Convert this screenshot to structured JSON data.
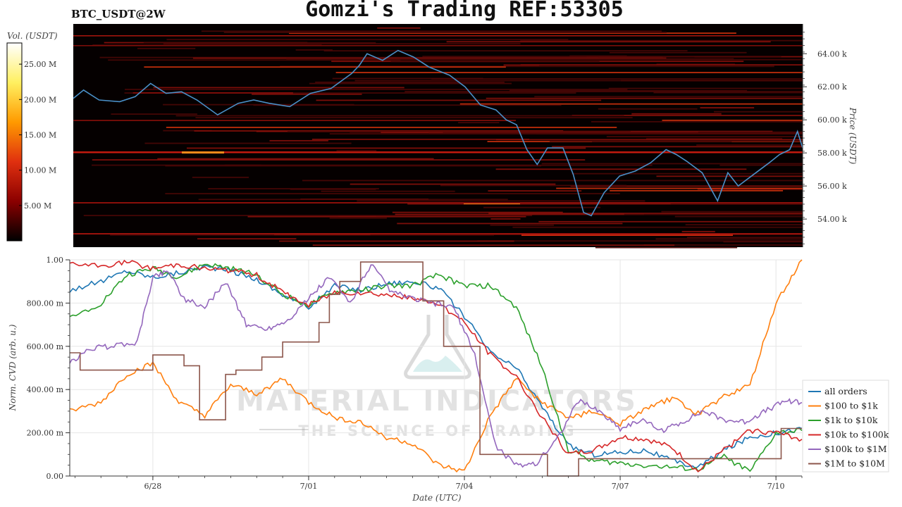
{
  "header": {
    "title": "Gomzi's Trading REF:53305",
    "symbol": "BTC_USDT@2W"
  },
  "watermark": {
    "line1": "MATERIAL INDICATORS",
    "line2": "THE SCIENCE OF TRADING"
  },
  "colorbar": {
    "label": "Vol. (USDT)",
    "ticks": [
      "5.00 M",
      "10.00 M",
      "15.00 M",
      "20.00 M",
      "25.00 M"
    ],
    "tick_values": [
      5,
      10,
      15,
      20,
      25
    ],
    "range": [
      0,
      28
    ],
    "colors": [
      "#000000",
      "#8b0000",
      "#e0300f",
      "#ff9a00",
      "#fff060",
      "#ffffff"
    ]
  },
  "chart_data": [
    {
      "type": "heatmap",
      "ylabel": "Price (USDT)",
      "yticks": [
        "54.00 k",
        "56.00 k",
        "58.00 k",
        "60.00 k",
        "62.00 k",
        "64.00 k"
      ],
      "ytick_values": [
        54000,
        56000,
        58000,
        60000,
        62000,
        64000
      ],
      "ylim": [
        52300,
        65800
      ],
      "xlim_days": [
        -2.6,
        11.55
      ],
      "colors": {
        "background": "#050000",
        "price_line": "#4a90c8"
      },
      "price_series": {
        "x": [
          -2.6,
          -2.4,
          -2.1,
          -1.7,
          -1.4,
          -1.1,
          -0.8,
          -0.5,
          -0.2,
          0.2,
          0.6,
          0.9,
          1.2,
          1.6,
          2.0,
          2.4,
          2.8,
          2.95,
          3.1,
          3.4,
          3.7,
          4.0,
          4.3,
          4.7,
          5.0,
          5.3,
          5.6,
          5.8,
          6.0,
          6.2,
          6.4,
          6.6,
          6.9,
          7.1,
          7.3,
          7.45,
          7.7,
          8.0,
          8.3,
          8.6,
          8.9,
          9.1,
          9.3,
          9.6,
          9.9,
          10.1,
          10.3,
          10.6,
          10.9,
          11.1,
          11.3,
          11.45,
          11.55
        ],
        "y": [
          61300,
          61800,
          61200,
          61100,
          61400,
          62200,
          61600,
          61700,
          61200,
          60300,
          61000,
          61200,
          61000,
          60800,
          61600,
          61900,
          62800,
          63300,
          64000,
          63600,
          64200,
          63800,
          63200,
          62700,
          62000,
          60900,
          60600,
          60000,
          59700,
          58200,
          57300,
          58300,
          58300,
          56700,
          54400,
          54200,
          55600,
          56600,
          56900,
          57400,
          58200,
          57900,
          57500,
          56800,
          55100,
          56800,
          56000,
          56700,
          57400,
          57900,
          58200,
          59300,
          58300
        ]
      }
    },
    {
      "type": "line",
      "xlabel": "Date (UTC)",
      "ylabel": "Norm. CVD (arb. u.)",
      "x_tick_labels": [
        "6/28",
        "7/01",
        "7/04",
        "7/07",
        "7/10"
      ],
      "x_tick_days": [
        0,
        3,
        6,
        9,
        12
      ],
      "xlim_days": [
        -1.6,
        12.5
      ],
      "y_tick_labels": [
        "0.00",
        "200.00 m",
        "400.00 m",
        "600.00 m",
        "800.00 m",
        "1.00"
      ],
      "y_tick_values": [
        0,
        0.2,
        0.4,
        0.6,
        0.8,
        1.0
      ],
      "ylim": [
        0,
        1
      ],
      "grid": true,
      "legend_position": "bottom-right",
      "series": [
        {
          "name": "all orders",
          "color": "#1f77b4",
          "x": [
            -1.6,
            -1,
            -0.5,
            0,
            0.5,
            1,
            1.5,
            2,
            2.5,
            3,
            3.5,
            4,
            4.5,
            5,
            5.5,
            6,
            6.5,
            7,
            7.5,
            8,
            8.5,
            9,
            9.5,
            10,
            10.5,
            11,
            11.5,
            12,
            12.5
          ],
          "y": [
            0.86,
            0.9,
            0.95,
            0.92,
            0.94,
            0.97,
            0.95,
            0.91,
            0.84,
            0.78,
            0.88,
            0.86,
            0.89,
            0.9,
            0.87,
            0.74,
            0.57,
            0.5,
            0.32,
            0.14,
            0.1,
            0.11,
            0.12,
            0.07,
            0.04,
            0.12,
            0.18,
            0.2,
            0.22
          ]
        },
        {
          "name": "$100 to $1k",
          "color": "#ff7f0e",
          "x": [
            -1.6,
            -1,
            -0.5,
            0,
            0.5,
            1,
            1.5,
            2,
            2.5,
            3,
            3.5,
            4,
            4.5,
            5,
            5.5,
            6,
            6.5,
            7,
            7.5,
            8,
            8.5,
            9,
            9.5,
            10,
            10.5,
            11,
            11.5,
            12,
            12.5
          ],
          "y": [
            0.3,
            0.34,
            0.47,
            0.52,
            0.34,
            0.28,
            0.42,
            0.38,
            0.45,
            0.34,
            0.27,
            0.25,
            0.18,
            0.15,
            0.05,
            0.02,
            0.28,
            0.45,
            0.34,
            0.27,
            0.3,
            0.24,
            0.31,
            0.36,
            0.29,
            0.37,
            0.42,
            0.8,
            1.0
          ]
        },
        {
          "name": "$1k to $10k",
          "color": "#2ca02c",
          "x": [
            -1.6,
            -1,
            -0.5,
            0,
            0.5,
            1,
            1.5,
            2,
            2.5,
            3,
            3.5,
            4,
            4.5,
            5,
            5.5,
            6,
            6.5,
            7,
            7.5,
            8,
            8.5,
            9,
            9.5,
            10,
            10.5,
            11,
            11.5,
            12,
            12.5
          ],
          "y": [
            0.73,
            0.8,
            0.93,
            0.96,
            0.92,
            0.98,
            0.96,
            0.93,
            0.84,
            0.79,
            0.85,
            0.86,
            0.88,
            0.88,
            0.93,
            0.88,
            0.88,
            0.78,
            0.5,
            0.12,
            0.07,
            0.06,
            0.05,
            0.04,
            0.03,
            0.09,
            0.02,
            0.2,
            0.21
          ]
        },
        {
          "name": "$10k to $100k",
          "color": "#d62728",
          "x": [
            -1.6,
            -1,
            -0.5,
            0,
            0.5,
            1,
            1.5,
            2,
            2.5,
            3,
            3.5,
            4,
            4.5,
            5,
            5.5,
            6,
            6.5,
            7,
            7.5,
            8,
            8.5,
            9,
            9.5,
            10,
            10.5,
            11,
            11.5,
            12,
            12.5
          ],
          "y": [
            0.98,
            0.97,
            0.99,
            0.96,
            0.98,
            0.96,
            0.95,
            0.93,
            0.85,
            0.79,
            0.85,
            0.85,
            0.84,
            0.82,
            0.8,
            0.71,
            0.56,
            0.46,
            0.27,
            0.1,
            0.12,
            0.18,
            0.17,
            0.13,
            0.02,
            0.12,
            0.21,
            0.2,
            0.17
          ]
        },
        {
          "name": "$100k to $1M",
          "color": "#9467bd",
          "x": [
            -1.6,
            -1.2,
            -0.8,
            -0.3,
            0,
            0.3,
            0.6,
            1,
            1.4,
            1.8,
            2.2,
            2.6,
            3,
            3.4,
            3.8,
            4.2,
            4.6,
            5,
            5.4,
            5.8,
            6.2,
            6.6,
            7,
            7.4,
            7.8,
            8.2,
            8.6,
            9,
            9.4,
            9.8,
            10.2,
            10.6,
            11,
            11.4,
            11.8,
            12.2,
            12.5
          ],
          "y": [
            0.52,
            0.59,
            0.6,
            0.62,
            0.92,
            0.95,
            0.82,
            0.78,
            0.9,
            0.7,
            0.68,
            0.72,
            0.82,
            0.92,
            0.8,
            0.98,
            0.85,
            0.82,
            0.8,
            0.78,
            0.56,
            0.14,
            0.05,
            0.06,
            0.18,
            0.35,
            0.3,
            0.22,
            0.26,
            0.21,
            0.25,
            0.3,
            0.26,
            0.25,
            0.3,
            0.35,
            0.34
          ]
        },
        {
          "name": "$1M to $10M",
          "color": "#8c564b",
          "x": [
            -1.6,
            -1.4,
            -1.4,
            -0.6,
            -0.6,
            0,
            0,
            0.6,
            0.6,
            0.9,
            0.9,
            1.4,
            1.4,
            1.6,
            1.6,
            2.1,
            2.1,
            2.5,
            2.5,
            3.2,
            3.2,
            3.4,
            3.4,
            3.6,
            3.6,
            4,
            4,
            5.2,
            5.2,
            5.6,
            5.6,
            6.3,
            6.3,
            7.6,
            7.6,
            8.2,
            8.2,
            12.1,
            12.1,
            12.5
          ],
          "y": [
            0.57,
            0.57,
            0.49,
            0.49,
            0.49,
            0.49,
            0.56,
            0.56,
            0.51,
            0.51,
            0.26,
            0.26,
            0.47,
            0.47,
            0.49,
            0.49,
            0.55,
            0.55,
            0.62,
            0.62,
            0.71,
            0.71,
            0.84,
            0.84,
            0.9,
            0.9,
            0.99,
            0.99,
            0.81,
            0.81,
            0.6,
            0.6,
            0.1,
            0.1,
            0.0,
            0.0,
            0.08,
            0.08,
            0.22,
            0.22
          ]
        }
      ]
    }
  ]
}
